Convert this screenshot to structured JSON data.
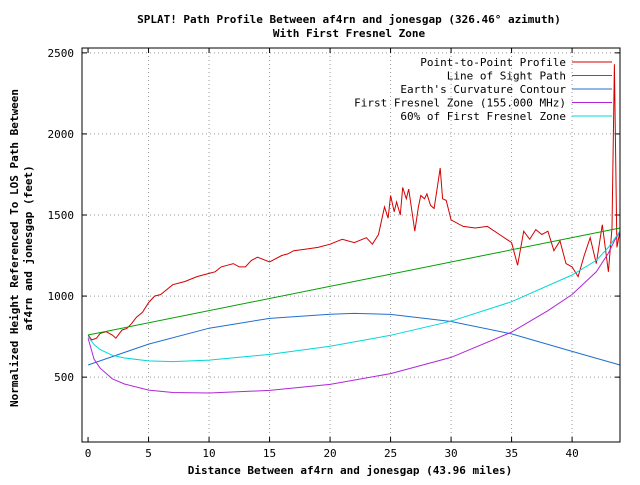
{
  "chart_data": {
    "type": "line",
    "title_line1": "SPLAT! Path Profile Between af4rn and jonesgap (326.46° azimuth)",
    "title_line2": "With First Fresnel Zone",
    "xlabel": "Distance Between af4rn and jonesgap (43.96 miles)",
    "ylabel_line1": "Normalized Height Referenced To LOS Path Between",
    "ylabel_line2": "af4rn and jonesgap (feet)",
    "xlim": [
      -0.5,
      43.96
    ],
    "ylim": [
      100,
      2530
    ],
    "xticks": [
      0,
      5,
      10,
      15,
      20,
      25,
      30,
      35,
      40
    ],
    "yticks": [
      500,
      1000,
      1500,
      2000,
      2500
    ],
    "grid": true,
    "legend_position": "top-right",
    "series": [
      {
        "name": "Point-to-Point Profile",
        "color": "#d40000",
        "x": [
          0,
          0.3,
          0.7,
          1.0,
          1.5,
          2.0,
          2.3,
          2.8,
          3.2,
          3.6,
          4.0,
          4.5,
          5.0,
          5.5,
          6.0,
          6.5,
          7.0,
          7.5,
          8.0,
          9.0,
          10.0,
          10.5,
          11.0,
          11.5,
          12.0,
          12.5,
          13.0,
          13.5,
          14.0,
          15.0,
          16.0,
          16.5,
          17.0,
          18.0,
          19.0,
          20.0,
          21.0,
          22.0,
          23.0,
          23.5,
          24.0,
          24.5,
          24.8,
          25.0,
          25.3,
          25.5,
          25.8,
          26.0,
          26.3,
          26.5,
          27.0,
          27.3,
          27.5,
          27.8,
          28.0,
          28.3,
          28.6,
          28.9,
          29.1,
          29.3,
          29.6,
          30.0,
          31.0,
          32.0,
          33.0,
          34.0,
          35.0,
          35.5,
          36.0,
          36.5,
          37.0,
          37.5,
          38.0,
          38.5,
          39.0,
          39.5,
          40.0,
          40.5,
          41.0,
          41.5,
          42.0,
          42.5,
          43.0,
          43.3,
          43.5,
          43.7,
          43.96
        ],
        "y": [
          760,
          730,
          740,
          770,
          780,
          760,
          740,
          790,
          800,
          830,
          870,
          900,
          960,
          1000,
          1010,
          1040,
          1070,
          1080,
          1090,
          1120,
          1140,
          1150,
          1180,
          1190,
          1200,
          1180,
          1180,
          1220,
          1240,
          1210,
          1250,
          1260,
          1280,
          1290,
          1300,
          1320,
          1350,
          1330,
          1360,
          1320,
          1380,
          1550,
          1480,
          1620,
          1520,
          1580,
          1500,
          1670,
          1600,
          1660,
          1400,
          1550,
          1620,
          1600,
          1630,
          1560,
          1540,
          1690,
          1790,
          1600,
          1590,
          1470,
          1430,
          1420,
          1430,
          1380,
          1330,
          1190,
          1400,
          1350,
          1410,
          1380,
          1400,
          1280,
          1340,
          1200,
          1180,
          1120,
          1250,
          1360,
          1200,
          1440,
          1150,
          1420,
          2430,
          1300,
          1400
        ]
      },
      {
        "name": "Line of Sight Path",
        "color": "#00a000",
        "x": [
          0,
          43.96
        ],
        "y": [
          760,
          1420
        ]
      },
      {
        "name": "Earth's Curvature Contour",
        "color": "#1f6fd1",
        "x": [
          0,
          5,
          10,
          15,
          20,
          22,
          25,
          30,
          35,
          40,
          43.96
        ],
        "y": [
          575,
          704,
          802,
          862,
          888,
          893,
          887,
          843,
          767,
          659,
          575
        ]
      },
      {
        "name": "First Fresnel Zone (155.000 MHz)",
        "color": "#b026d8",
        "x": [
          0,
          0.5,
          1,
          2,
          3,
          5,
          7,
          10,
          15,
          20,
          25,
          30,
          35,
          38,
          40,
          42,
          43,
          43.5,
          43.96
        ],
        "y": [
          740,
          610,
          555,
          490,
          458,
          420,
          405,
          402,
          418,
          455,
          522,
          622,
          778,
          910,
          1010,
          1150,
          1265,
          1340,
          1400
        ]
      },
      {
        "name": "60% of First Fresnel Zone",
        "color": "#00d8d8",
        "x": [
          0,
          0.5,
          1,
          2,
          3,
          5,
          7,
          10,
          15,
          20,
          25,
          30,
          35,
          40,
          42,
          43,
          43.96
        ],
        "y": [
          750,
          700,
          670,
          635,
          618,
          600,
          596,
          605,
          640,
          690,
          758,
          845,
          965,
          1130,
          1220,
          1300,
          1400
        ]
      }
    ]
  }
}
